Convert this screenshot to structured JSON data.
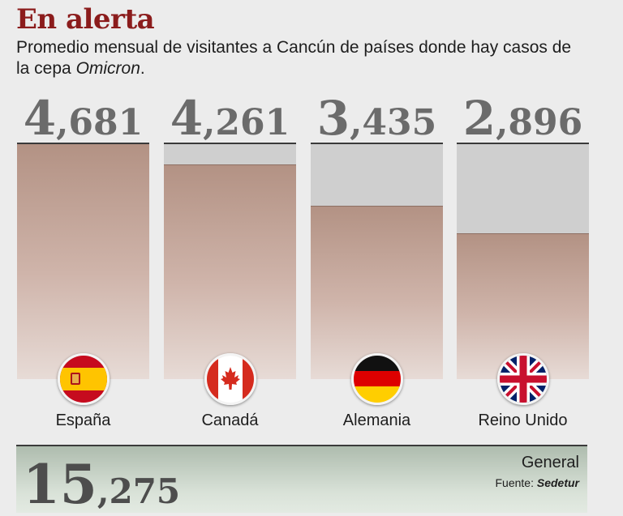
{
  "title": "En alerta",
  "subtitle": {
    "text": "Promedio mensual de visitantes a Cancún de países donde hay casos de la cepa",
    "italic": "Omicron",
    "end": "."
  },
  "chart_data": {
    "type": "bar",
    "categories": [
      "España",
      "Canadá",
      "Alemania",
      "Reino Unido"
    ],
    "values": [
      4681,
      4261,
      3435,
      2896
    ],
    "value_labels": [
      {
        "lead": "4",
        "rest": ",681"
      },
      {
        "lead": "4",
        "rest": ",261"
      },
      {
        "lead": "3",
        "rest": ",435"
      },
      {
        "lead": "2",
        "rest": ",896"
      }
    ],
    "ylim": [
      0,
      4681
    ],
    "grid": false,
    "bar_color": "#b39284",
    "track_color": "#cfcfcf"
  },
  "flags": [
    "spain-flag-icon",
    "canada-flag-icon",
    "germany-flag-icon",
    "uk-flag-icon"
  ],
  "total": {
    "label": "General",
    "value": 15275,
    "lead": "15",
    "rest": ",275"
  },
  "source": {
    "prefix": "Fuente:",
    "name": "Sedetur"
  },
  "colors": {
    "title": "#8b1c1c",
    "numbers": "#6b6b6b",
    "background": "#ececec",
    "footer": "#c9d4c8"
  }
}
